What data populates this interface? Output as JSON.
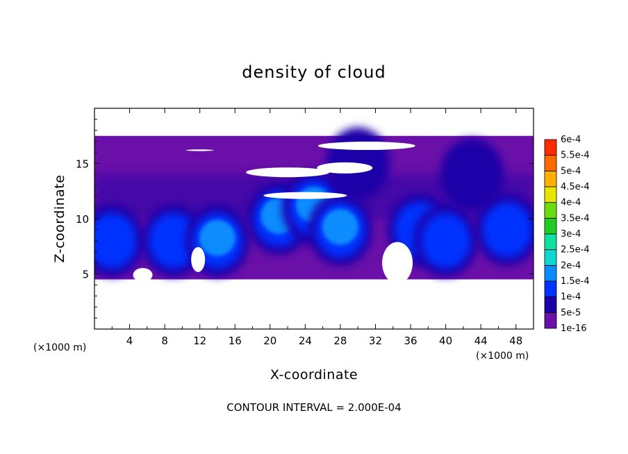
{
  "chart_data": {
    "type": "heatmap",
    "title": "density of cloud",
    "xlabel": "X-coordinate",
    "ylabel": "Z-coordinate",
    "x_units": "(×1000 m)",
    "z_units": "(×1000 m)",
    "xlim": [
      0,
      50
    ],
    "ylim": [
      0,
      20
    ],
    "x_ticks": [
      "4",
      "8",
      "12",
      "16",
      "20",
      "24",
      "28",
      "32",
      "36",
      "40",
      "44",
      "48"
    ],
    "y_ticks": [
      "5",
      "10",
      "15"
    ],
    "grid": false,
    "legend_placement": "right",
    "colorbar": {
      "levels": [
        "1e-16",
        "5e-5",
        "1e-4",
        "1.5e-4",
        "2e-4",
        "2.5e-4",
        "3e-4",
        "3.5e-4",
        "4e-4",
        "4.5e-4",
        "5e-4",
        "5.5e-4",
        "6e-4"
      ],
      "colors": [
        "#6a0fa8",
        "#1b00a8",
        "#0033ff",
        "#0a8cff",
        "#10d6d0",
        "#10e0a0",
        "#22cc22",
        "#6edd10",
        "#e6e600",
        "#ffb000",
        "#ff6a00",
        "#ff2a00",
        "#ff8a8a"
      ]
    },
    "cloud_base_km": 4.5,
    "cloud_top_km": 17.5,
    "cells": [
      {
        "x": 2,
        "z": 8,
        "level": 2
      },
      {
        "x": 9,
        "z": 8,
        "level": 2
      },
      {
        "x": 14,
        "z": 8,
        "level": 3
      },
      {
        "x": 21,
        "z": 10,
        "level": 3
      },
      {
        "x": 25,
        "z": 11,
        "level": 3
      },
      {
        "x": 28,
        "z": 9,
        "level": 3
      },
      {
        "x": 37,
        "z": 9,
        "level": 2
      },
      {
        "x": 40,
        "z": 8,
        "level": 2
      },
      {
        "x": 47,
        "z": 9,
        "level": 2
      },
      {
        "x": 43,
        "z": 14,
        "level": 1
      },
      {
        "x": 30,
        "z": 15,
        "level": 1
      }
    ],
    "annotation": "CONTOUR INTERVAL = 2.000E-04"
  }
}
